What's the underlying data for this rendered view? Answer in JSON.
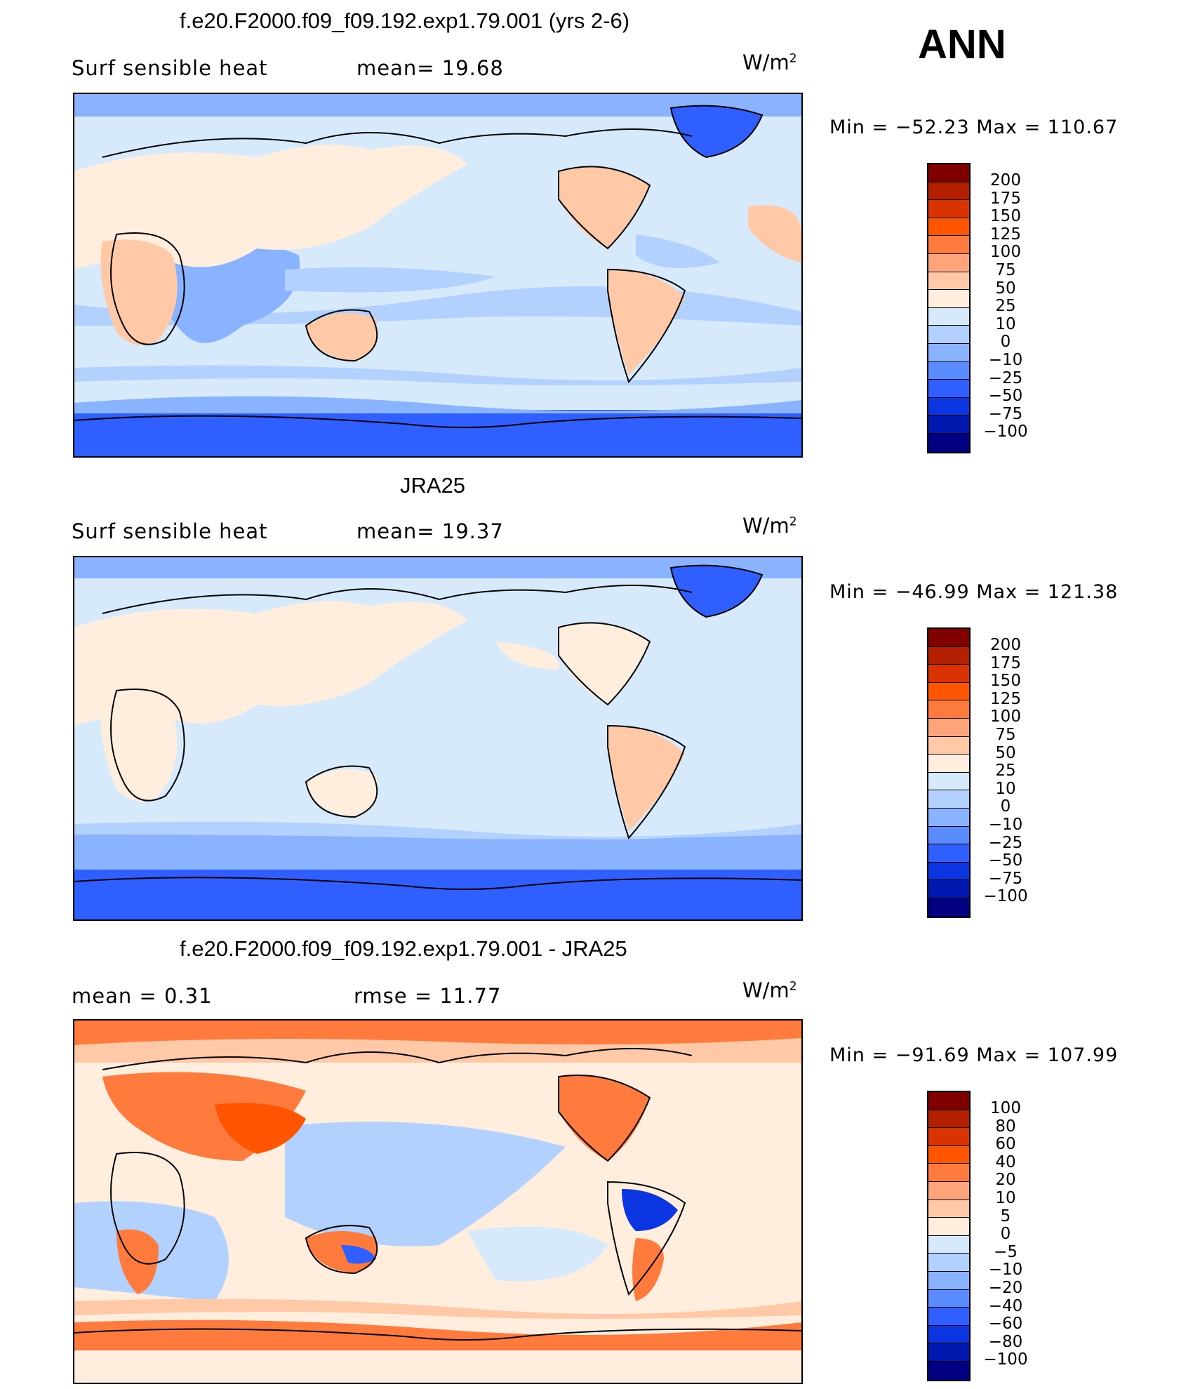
{
  "season": "ANN",
  "panels": [
    {
      "title": "f.e20.F2000.f09_f09.192.exp1.79.001 (yrs 2-6)",
      "left_text": "Surf  sensible  heat",
      "right_text": "mean=   19.68",
      "units_base": "W/m",
      "units_exp": "2",
      "minmax": "Min  =  −52.23  Max  =  110.67",
      "colorbar_labels": [
        "200",
        "175",
        "150",
        "125",
        "100",
        "75",
        "50",
        "25",
        "10",
        "0",
        "−10",
        "−25",
        "−50",
        "−75",
        "−100"
      ]
    },
    {
      "title": "JRA25",
      "left_text": "Surf  sensible  heat",
      "right_text": "mean=   19.37",
      "units_base": "W/m",
      "units_exp": "2",
      "minmax": "Min  =  −46.99  Max  =  121.38",
      "colorbar_labels": [
        "200",
        "175",
        "150",
        "125",
        "100",
        "75",
        "50",
        "25",
        "10",
        "0",
        "−10",
        "−25",
        "−50",
        "−75",
        "−100"
      ]
    },
    {
      "title": "f.e20.F2000.f09_f09.192.exp1.79.001 - JRA25",
      "left_text": "mean  =     0.31",
      "right_text": "rmse  =     11.77",
      "units_base": "W/m",
      "units_exp": "2",
      "minmax": "Min  =  −91.69  Max  =  107.99",
      "colorbar_labels": [
        "100",
        "80",
        "60",
        "40",
        "20",
        "10",
        "5",
        "0",
        "−5",
        "−10",
        "−20",
        "−40",
        "−60",
        "−80",
        "−100"
      ]
    }
  ],
  "colors": {
    "abs_scale": [
      "#800000",
      "#b22000",
      "#d83300",
      "#ff5400",
      "#ff7a3d",
      "#ffa37a",
      "#ffc9a8",
      "#ffeedd",
      "#d6eafc",
      "#b3d1ff",
      "#8ab3ff",
      "#5b8cff",
      "#2f5fff",
      "#0a35e0",
      "#0018b0",
      "#000080"
    ],
    "diff_scale": [
      "#800000",
      "#b22000",
      "#d83300",
      "#ff5400",
      "#ff7a3d",
      "#ffa37a",
      "#ffc9a8",
      "#ffeedd",
      "#d6eafc",
      "#b3d1ff",
      "#8ab3ff",
      "#5b8cff",
      "#2f5fff",
      "#0a35e0",
      "#0018b0",
      "#000080"
    ]
  }
}
